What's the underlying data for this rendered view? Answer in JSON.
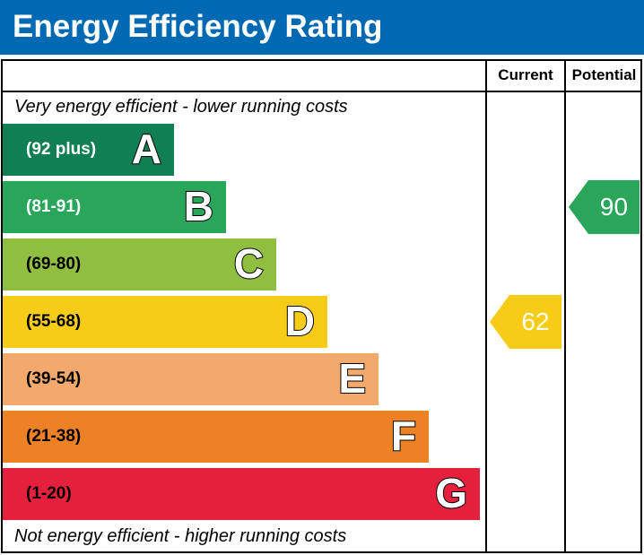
{
  "header": {
    "title": "Energy Efficiency Rating"
  },
  "columns": {
    "current": "Current",
    "potential": "Potential"
  },
  "notes": {
    "top": "Very energy efficient - lower running costs",
    "bottom": "Not energy efficient - higher running costs"
  },
  "chart_data": {
    "type": "bar",
    "title": "Energy Efficiency Rating",
    "categories": [
      "A",
      "B",
      "C",
      "D",
      "E",
      "F",
      "G"
    ],
    "bands": [
      {
        "letter": "A",
        "range": "(92 plus)",
        "color": "#107f53",
        "range_color": "#ffffff"
      },
      {
        "letter": "B",
        "range": "(81-91)",
        "color": "#2aa65a",
        "range_color": "#ffffff"
      },
      {
        "letter": "C",
        "range": "(69-80)",
        "color": "#8fbe40",
        "range_color": "#000000"
      },
      {
        "letter": "D",
        "range": "(55-68)",
        "color": "#f6cc17",
        "range_color": "#000000"
      },
      {
        "letter": "E",
        "range": "(39-54)",
        "color": "#f2a96b",
        "range_color": "#000000"
      },
      {
        "letter": "F",
        "range": "(21-38)",
        "color": "#ed8125",
        "range_color": "#000000"
      },
      {
        "letter": "G",
        "range": "(1-20)",
        "color": "#e4203c",
        "range_color": "#000000"
      }
    ],
    "current": {
      "label": "Current",
      "value": "62",
      "band": "D",
      "color": "#f6cc17"
    },
    "potential": {
      "label": "Potential",
      "value": "90",
      "band": "B",
      "color": "#2aa65a"
    }
  }
}
